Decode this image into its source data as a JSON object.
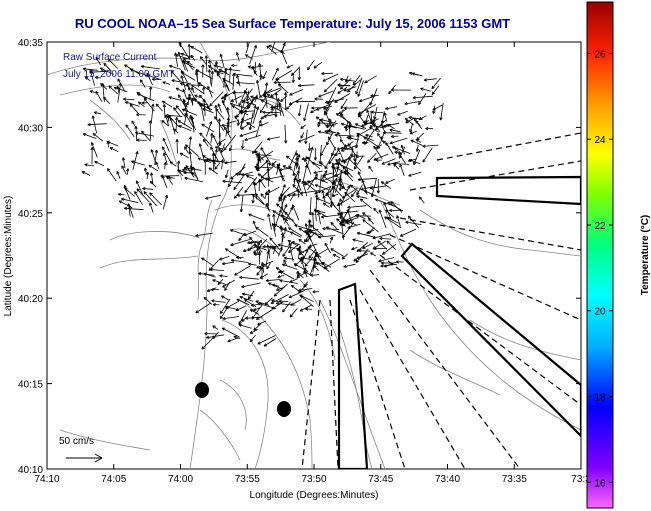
{
  "title": "RU COOL  NOAA–15  Sea Surface Temperature:  July 15, 2006 1153 GMT",
  "legend": {
    "line1": "Raw Surface Current",
    "line2": "July 15, 2006 11:00 GMT"
  },
  "scale_label": "50 cm/s",
  "axes": {
    "xlabel": "Longitude (Degrees:Minutes)",
    "ylabel": "Latitude (Degrees:Minutes)",
    "x_ticks": [
      "74:10",
      "74:05",
      "74:00",
      "73:55",
      "73:50",
      "73:45",
      "73:40",
      "73:35",
      "73:3"
    ],
    "y_ticks": [
      "40:35",
      "40:30",
      "40:25",
      "40:20",
      "40:15",
      "40:10"
    ]
  },
  "colorbar": {
    "label": "Temperature (°C)",
    "ticks": [
      "26",
      "24",
      "22",
      "20",
      "18",
      "16"
    ],
    "range": [
      15.4,
      27.2
    ]
  },
  "colors": {
    "title": "#0000a0",
    "legend_text": "#1a1aa0",
    "land_contour": "#888888",
    "vector": "#000000"
  }
}
